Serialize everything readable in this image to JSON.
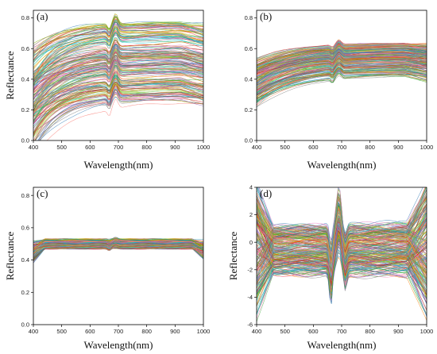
{
  "chart_data": [
    {
      "panel": "(a)",
      "type": "line",
      "xlabel": "Wavelength(nm)",
      "ylabel": "Reflectance",
      "xlim": [
        400,
        1000
      ],
      "ylim": [
        0.0,
        0.85
      ],
      "xticks": [
        400,
        500,
        600,
        700,
        800,
        900,
        1000
      ],
      "yticks": [
        0.0,
        0.2,
        0.4,
        0.6,
        0.8
      ],
      "ytick_labels": [
        "0.0",
        "0.2",
        "0.4",
        "0.6",
        "0.8"
      ],
      "n_series": 220,
      "levels": {
        "min": 0.25,
        "max": 0.78,
        "mean": 0.48
      },
      "feature_region_nm": [
        650,
        720
      ],
      "notes": "Raw reflectance spectra; curves rise from 400 nm and plateau, with a peak/dip feature near 680-700 nm."
    },
    {
      "panel": "(b)",
      "type": "line",
      "xlabel": "Wavelength(nm)",
      "ylabel": "",
      "xlim": [
        400,
        1000
      ],
      "ylim": [
        0.0,
        0.85
      ],
      "xticks": [
        400,
        500,
        600,
        700,
        800,
        900,
        1000
      ],
      "yticks": [
        0.0,
        0.2,
        0.4,
        0.6,
        0.8
      ],
      "ytick_labels": [
        "0.0",
        "0.2",
        "0.4",
        "0.6",
        "0.8"
      ],
      "n_series": 220,
      "levels": {
        "min": 0.35,
        "max": 0.64,
        "mean": 0.5
      },
      "feature_region_nm": [
        650,
        720
      ],
      "notes": "Smoothed reflectance spectra with a narrower spread."
    },
    {
      "panel": "(c)",
      "type": "line",
      "xlabel": "Wavelength(nm)",
      "ylabel": "Reflectance",
      "xlim": [
        400,
        1000
      ],
      "ylim": [
        0.0,
        0.85
      ],
      "xticks": [
        400,
        500,
        600,
        700,
        800,
        900,
        1000
      ],
      "yticks": [
        0.0,
        0.2,
        0.4,
        0.6,
        0.8
      ],
      "ytick_labels": [
        "0.0",
        "0.2",
        "0.4",
        "0.6",
        "0.8"
      ],
      "n_series": 220,
      "levels": {
        "min": 0.47,
        "max": 0.53,
        "mean": 0.5
      },
      "feature_region_nm": [
        650,
        720
      ],
      "notes": "Normalized spectra collapsing to a narrow band around 0.5."
    },
    {
      "panel": "(d)",
      "type": "line",
      "xlabel": "Wavelength(nm)",
      "ylabel": "Reflectance",
      "xlim": [
        400,
        1000
      ],
      "ylim": [
        -6,
        4
      ],
      "xticks": [
        400,
        500,
        600,
        700,
        800,
        900,
        1000
      ],
      "yticks": [
        -6,
        -4,
        -2,
        0,
        2,
        4
      ],
      "ytick_labels": [
        "-6",
        "-4",
        "-2",
        "0",
        "2",
        "4"
      ],
      "n_series": 260,
      "levels": {
        "min": -5.5,
        "max": 3.0,
        "mean": 0.5
      },
      "feature_region_nm": [
        650,
        720
      ],
      "notes": "Standardized spectra spanning roughly -5 to 3, strong oscillation near 680-700 nm and divergence at both ends."
    }
  ]
}
